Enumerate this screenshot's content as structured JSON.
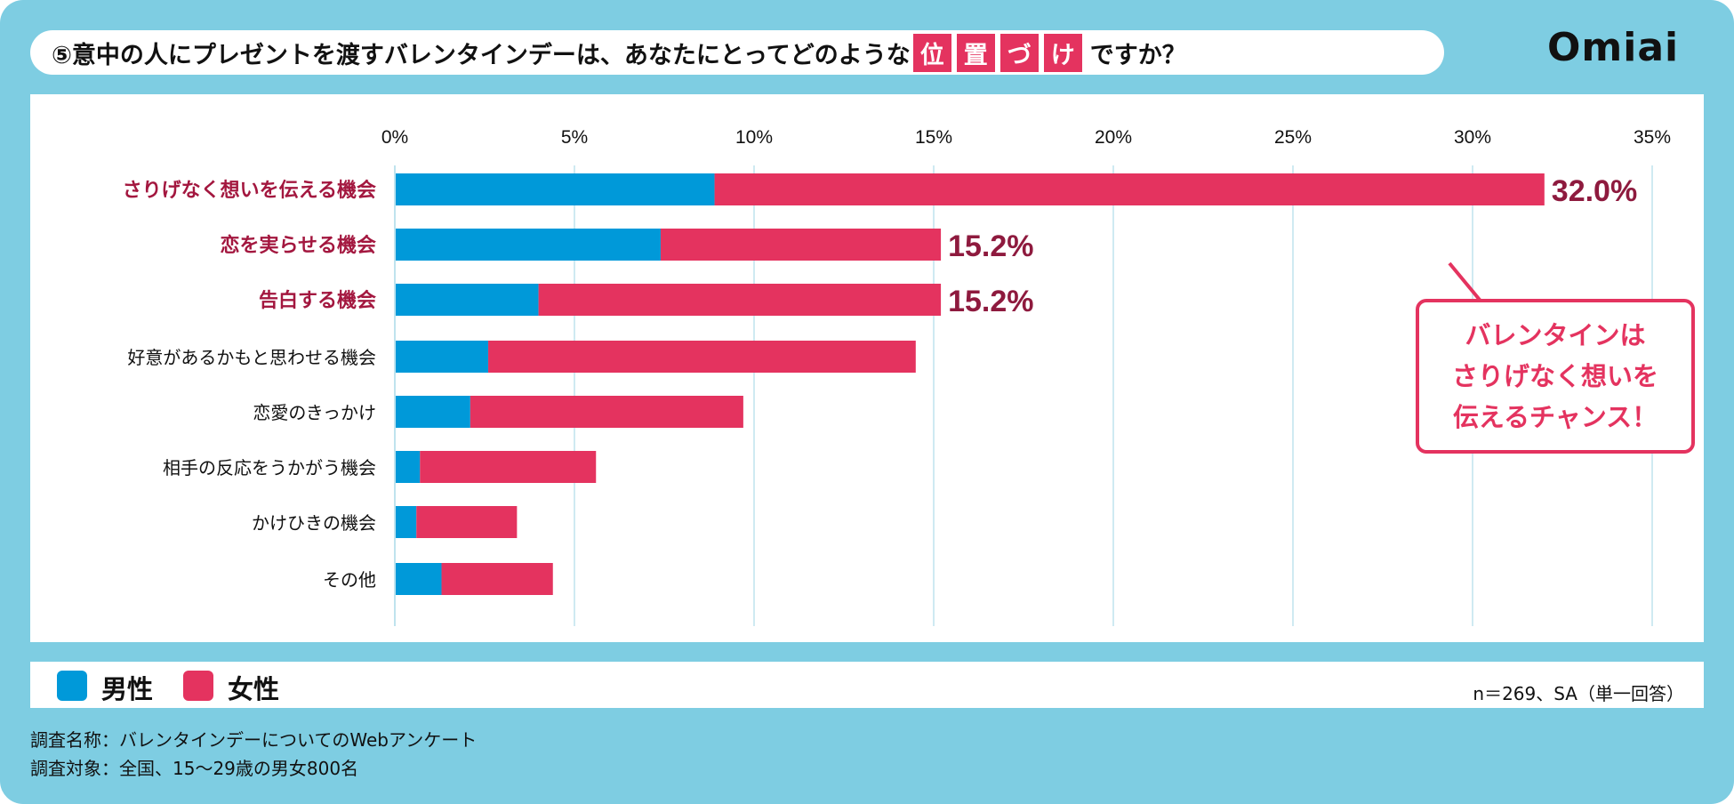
{
  "title": {
    "before": "⑤意中の人にプレゼントを渡すバレンタインデーは、あなたにとってどのような",
    "highlight": [
      "位",
      "置",
      "づ",
      "け"
    ],
    "after": "ですか？"
  },
  "logo": "Omiai",
  "chart_data": {
    "type": "bar",
    "orientation": "horizontal",
    "stacked": true,
    "categories": [
      "さりげなく想いを伝える機会",
      "恋を実らせる機会",
      "告白する機会",
      "好意があるかもと思わせる機会",
      "恋愛のきっかけ",
      "相手の反応をうかがう機会",
      "かけひきの機会",
      "その他"
    ],
    "highlighted_categories": [
      0,
      1,
      2
    ],
    "series": [
      {
        "name": "男性",
        "color": "#0099d9",
        "values": [
          8.9,
          7.4,
          4.0,
          2.6,
          2.1,
          0.7,
          0.6,
          1.3
        ]
      },
      {
        "name": "女性",
        "color": "#e4335f",
        "values": [
          23.1,
          7.8,
          11.2,
          11.9,
          7.6,
          4.9,
          2.8,
          3.1
        ]
      }
    ],
    "data_labels": [
      "32.0%",
      "15.2%",
      "15.2%"
    ],
    "xlim": [
      0,
      35
    ],
    "xticks": [
      "0%",
      "5%",
      "10%",
      "15%",
      "20%",
      "25%",
      "30%",
      "35%"
    ],
    "grid": true,
    "legend": "bottom-left",
    "annotation": [
      "バレンタインは",
      "さりげなく想いを",
      "伝えるチャンス！"
    ]
  },
  "note": "n＝269、SA（単一回答）",
  "footer": [
    "調査名称：バレンタインデーについてのWebアンケート",
    "調査対象：全国、15～29歳の男女800名"
  ]
}
